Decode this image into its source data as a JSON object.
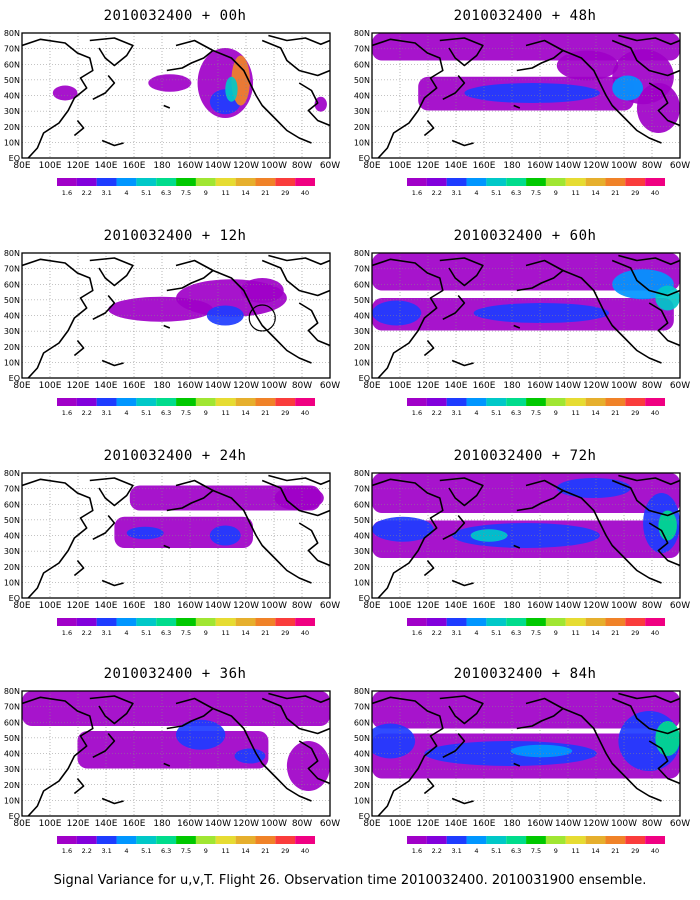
{
  "figure": {
    "caption": "Signal Variance for u,v,T. Flight 26. Observation time 2010032400. 2010031900 ensemble."
  },
  "chart_data": {
    "type": "map-contour",
    "map": {
      "lon_ticks": [
        "80E",
        "100E",
        "120E",
        "140E",
        "160E",
        "180",
        "160W",
        "140W",
        "120W",
        "100W",
        "80W",
        "60W"
      ],
      "lat_ticks": [
        "80N",
        "70N",
        "60N",
        "50N",
        "40N",
        "30N",
        "20N",
        "10N",
        "EQ"
      ]
    },
    "colorbar": {
      "levels": [
        "1.6",
        "2.2",
        "3.1",
        "4",
        "5.1",
        "6.3",
        "7.5",
        "9",
        "11",
        "14",
        "21",
        "29",
        "40"
      ],
      "colors": [
        "#a000c8",
        "#8200dc",
        "#1e3cff",
        "#0096ff",
        "#00c8c8",
        "#00dc8c",
        "#00c800",
        "#a0e632",
        "#e6dc32",
        "#e6af2d",
        "#f08228",
        "#fa3c3c",
        "#f00082"
      ]
    },
    "panels": [
      {
        "title": "2010032400 + 00h",
        "lead_hours": 0
      },
      {
        "title": "2010032400 + 48h",
        "lead_hours": 48
      },
      {
        "title": "2010032400 + 12h",
        "lead_hours": 12
      },
      {
        "title": "2010032400 + 60h",
        "lead_hours": 60
      },
      {
        "title": "2010032400 + 24h",
        "lead_hours": 24
      },
      {
        "title": "2010032400 + 72h",
        "lead_hours": 72
      },
      {
        "title": "2010032400 + 36h",
        "lead_hours": 36
      },
      {
        "title": "2010032400 + 84h",
        "lead_hours": 84
      }
    ]
  }
}
